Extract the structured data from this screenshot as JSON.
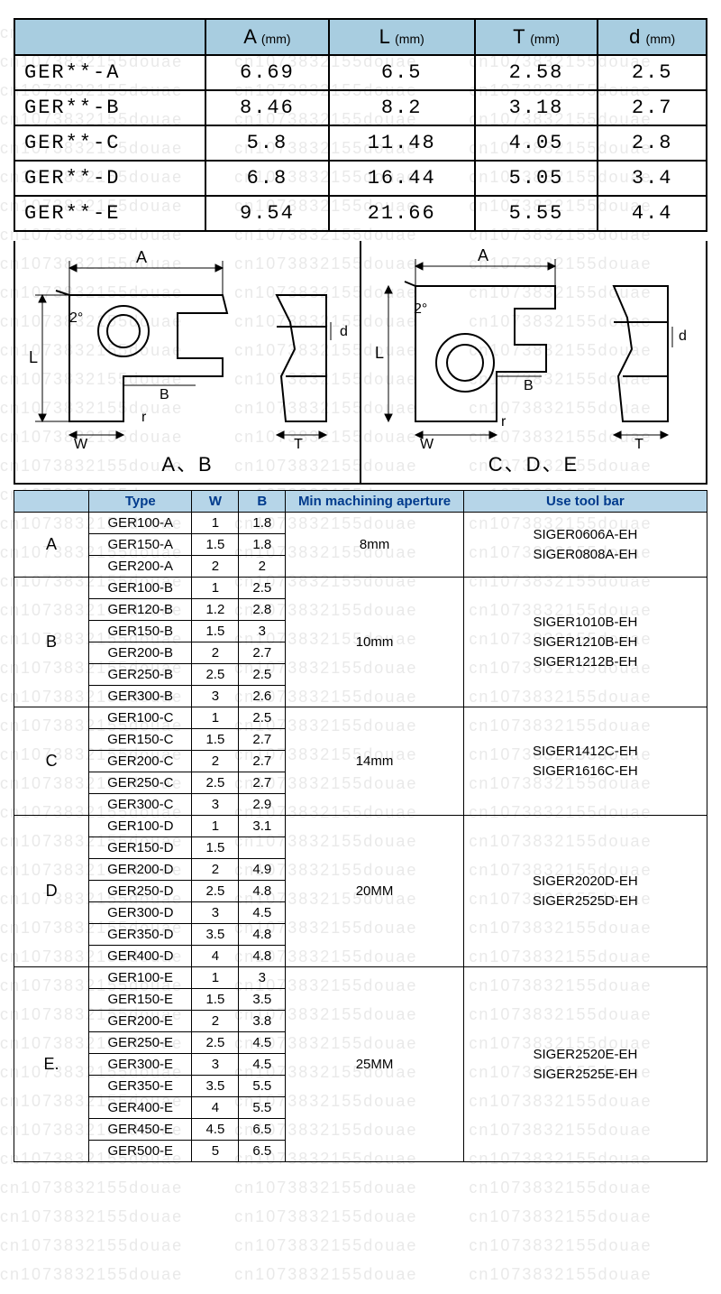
{
  "watermark_text": "cn1073832155douae",
  "colors": {
    "header_bg": "#a8cde0",
    "spec_header_bg": "#b6d5e8",
    "spec_header_text": "#003a8c",
    "border": "#000000",
    "background": "#ffffff"
  },
  "top_table": {
    "columns": [
      "A",
      "L",
      "T",
      "d"
    ],
    "unit": "(mm)",
    "rows": [
      {
        "label": "GER**-A",
        "A": "6.69",
        "L": "6.5",
        "T": "2.58",
        "d": "2.5"
      },
      {
        "label": "GER**-B",
        "A": "8.46",
        "L": "8.2",
        "T": "3.18",
        "d": "2.7"
      },
      {
        "label": "GER**-C",
        "A": "5.8",
        "L": "11.48",
        "T": "4.05",
        "d": "2.8"
      },
      {
        "label": "GER**-D",
        "A": "6.8",
        "L": "16.44",
        "T": "5.05",
        "d": "3.4"
      },
      {
        "label": "GER**-E",
        "A": "9.54",
        "L": "21.66",
        "T": "5.55",
        "d": "4.4"
      }
    ]
  },
  "diagrams": {
    "left_caption": "A、B",
    "right_caption": "C、D、E",
    "dim_labels": {
      "A": "A",
      "L": "L",
      "B": "B",
      "W": "W",
      "r": "r",
      "T": "T",
      "d": "d",
      "angle": "2°"
    }
  },
  "spec_table": {
    "headers": [
      "",
      "Type",
      "W",
      "B",
      "Min machining aperture",
      "Use tool bar"
    ],
    "col_widths": [
      "80px",
      "110px",
      "50px",
      "50px",
      "190px",
      "260px"
    ],
    "groups": [
      {
        "label": "A",
        "min_aperture": "8mm",
        "tool_bars": [
          "SIGER0606A-EH",
          "SIGER0808A-EH"
        ],
        "rows": [
          {
            "type": "GER100-A",
            "W": "1",
            "B": "1.8"
          },
          {
            "type": "GER150-A",
            "W": "1.5",
            "B": "1.8"
          },
          {
            "type": "GER200-A",
            "W": "2",
            "B": "2"
          }
        ]
      },
      {
        "label": "B",
        "min_aperture": "10mm",
        "tool_bars": [
          "SIGER1010B-EH",
          "SIGER1210B-EH",
          "SIGER1212B-EH"
        ],
        "rows": [
          {
            "type": "GER100-B",
            "W": "1",
            "B": "2.5"
          },
          {
            "type": "GER120-B",
            "W": "1.2",
            "B": "2.8"
          },
          {
            "type": "GER150-B",
            "W": "1.5",
            "B": "3"
          },
          {
            "type": "GER200-B",
            "W": "2",
            "B": "2.7"
          },
          {
            "type": "GER250-B",
            "W": "2.5",
            "B": "2.5"
          },
          {
            "type": "GER300-B",
            "W": "3",
            "B": "2.6"
          }
        ]
      },
      {
        "label": "C",
        "min_aperture": "14mm",
        "tool_bars": [
          "SIGER1412C-EH",
          "SIGER1616C-EH"
        ],
        "rows": [
          {
            "type": "GER100-C",
            "W": "1",
            "B": "2.5"
          },
          {
            "type": "GER150-C",
            "W": "1.5",
            "B": "2.7"
          },
          {
            "type": "GER200-C",
            "W": "2",
            "B": "2.7"
          },
          {
            "type": "GER250-C",
            "W": "2.5",
            "B": "2.7"
          },
          {
            "type": "GER300-C",
            "W": "3",
            "B": "2.9"
          }
        ]
      },
      {
        "label": "D",
        "min_aperture": "20MM",
        "tool_bars": [
          "SIGER2020D-EH",
          "SIGER2525D-EH"
        ],
        "rows": [
          {
            "type": "GER100-D",
            "W": "1",
            "B": "3.1"
          },
          {
            "type": "GER150-D",
            "W": "1.5",
            "B": ""
          },
          {
            "type": "GER200-D",
            "W": "2",
            "B": "4.9"
          },
          {
            "type": "GER250-D",
            "W": "2.5",
            "B": "4.8"
          },
          {
            "type": "GER300-D",
            "W": "3",
            "B": "4.5"
          },
          {
            "type": "GER350-D",
            "W": "3.5",
            "B": "4.8"
          },
          {
            "type": "GER400-D",
            "W": "4",
            "B": "4.8"
          }
        ]
      },
      {
        "label": "E.",
        "min_aperture": "25MM",
        "tool_bars": [
          "SIGER2520E-EH",
          "SIGER2525E-EH"
        ],
        "rows": [
          {
            "type": "GER100-E",
            "W": "1",
            "B": "3"
          },
          {
            "type": "GER150-E",
            "W": "1.5",
            "B": "3.5"
          },
          {
            "type": "GER200-E",
            "W": "2",
            "B": "3.8"
          },
          {
            "type": "GER250-E",
            "W": "2.5",
            "B": "4.5"
          },
          {
            "type": "GER300-E",
            "W": "3",
            "B": "4.5"
          },
          {
            "type": "GER350-E",
            "W": "3.5",
            "B": "5.5"
          },
          {
            "type": "GER400-E",
            "W": "4",
            "B": "5.5"
          },
          {
            "type": "GER450-E",
            "W": "4.5",
            "B": "6.5"
          },
          {
            "type": "GER500-E",
            "W": "5",
            "B": "6.5"
          }
        ]
      }
    ]
  }
}
